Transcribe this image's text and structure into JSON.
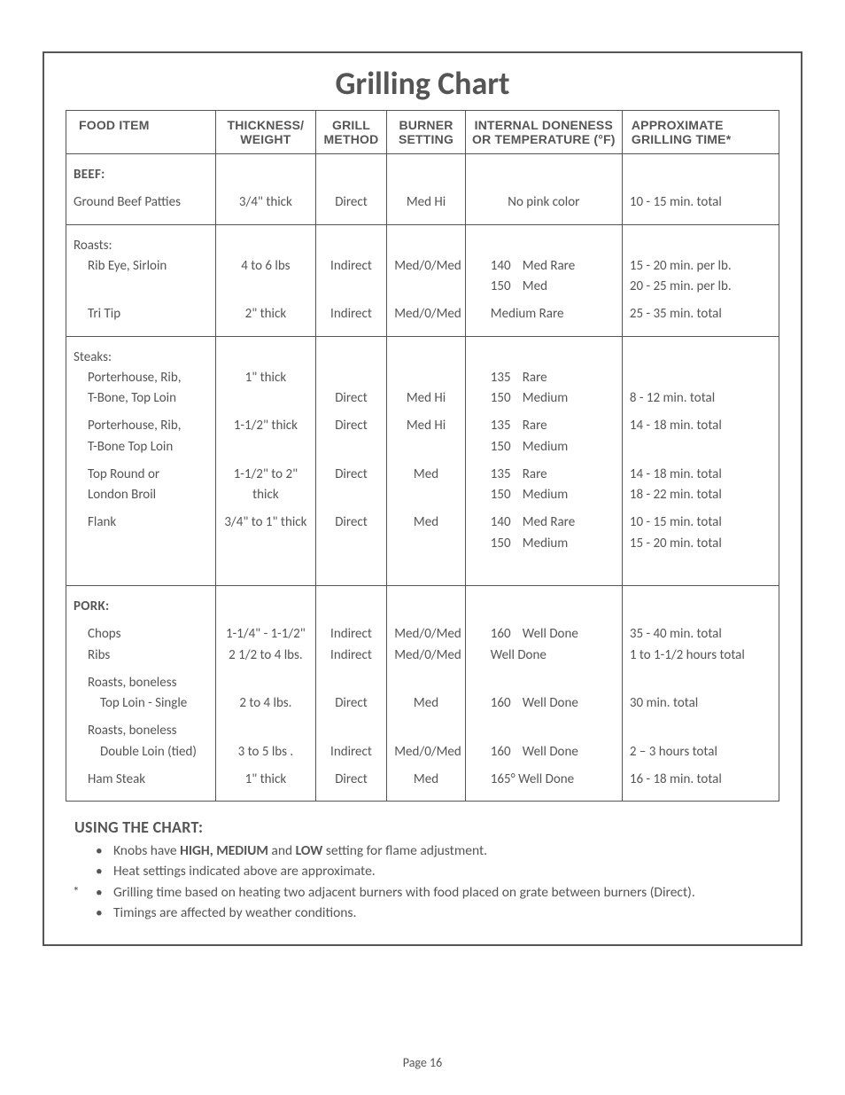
{
  "title": "Grilling Chart",
  "headers": {
    "food": "FOOD ITEM",
    "thickness": "THICKNESS/\nWEIGHT",
    "method": "GRILL\nMETHOD",
    "burner": "BURNER\nSETTING",
    "doneness": "INTERNAL DONENESS\nOR TEMPERATURE (°F)",
    "time": "APPROXIMATE\nGRILLING TIME*"
  },
  "beef": {
    "label": "BEEF:",
    "patties": {
      "name": "Ground Beef Patties",
      "thick": "3/4\" thick",
      "method": "Direct",
      "burner": "Med Hi",
      "done": "No pink color",
      "time": "10 - 15 min. total"
    },
    "roasts_label": "Roasts:",
    "ribeye": {
      "name": "Rib Eye,  Sirloin",
      "thick": "4 to 6 lbs",
      "method": "Indirect",
      "burner": "Med/0/Med",
      "done1_t": "140",
      "done1_l": "Med Rare",
      "done2_t": "150",
      "done2_l": "Med",
      "time1": "15 - 20 min. per lb.",
      "time2": "20 - 25 min. per lb."
    },
    "tritip": {
      "name": "Tri Tip",
      "thick": "2\" thick",
      "method": "Indirect",
      "burner": "Med/0/Med",
      "done": "Medium Rare",
      "time": "25 - 35 min. total"
    },
    "steaks_label": "Steaks:",
    "steak1": {
      "name1": "Porterhouse, Rib,",
      "name2": "T-Bone, Top Loin",
      "thick": "1\" thick",
      "method": "Direct",
      "burner": "Med Hi",
      "done1_t": "135",
      "done1_l": "Rare",
      "done2_t": "150",
      "done2_l": "Medium",
      "time": "8 - 12 min. total"
    },
    "steak2": {
      "name1": "Porterhouse, Rib,",
      "name2": "T-Bone Top Loin",
      "thick": "1-1/2\" thick",
      "method": "Direct",
      "burner": "Med Hi",
      "done1_t": "135",
      "done1_l": "Rare",
      "done2_t": "150",
      "done2_l": "Medium",
      "time": "14 - 18 min. total"
    },
    "london": {
      "name1": "Top Round or",
      "name2": "London Broil",
      "thick1": "1-1/2\" to 2\"",
      "thick2": "thick",
      "method": "Direct",
      "burner": "Med",
      "done1_t": "135",
      "done1_l": "Rare",
      "done2_t": "150",
      "done2_l": "Medium",
      "time1": "14 - 18 min. total",
      "time2": "18 - 22 min. total"
    },
    "flank": {
      "name": "Flank",
      "thick": "3/4\" to 1\" thick",
      "method": "Direct",
      "burner": "Med",
      "done1_t": "140",
      "done1_l": "Med Rare",
      "done2_t": "150",
      "done2_l": "Medium",
      "time1": "10 - 15 min. total",
      "time2": "15 - 20 min. total"
    }
  },
  "pork": {
    "label": "PORK:",
    "chops": {
      "name": "Chops",
      "thick": "1-1/4\" - 1-1/2\"",
      "method": "Indirect",
      "burner": "Med/0/Med",
      "done_t": "160",
      "done_l": "Well Done",
      "time": "35 - 40 min. total"
    },
    "ribs": {
      "name": "Ribs",
      "thick": "2 1/2 to 4 lbs.",
      "method": "Indirect",
      "burner": "Med/0/Med",
      "done": "Well Done",
      "time": "1 to 1-1/2 hours total"
    },
    "roast1": {
      "name1": "Roasts, boneless",
      "name2": "Top Loin - Single",
      "thick": "2 to 4 lbs.",
      "method": "Direct",
      "burner": "Med",
      "done_t": "160",
      "done_l": "Well Done",
      "time": "30 min. total"
    },
    "roast2": {
      "name1": "Roasts, boneless",
      "name2": "Double Loin (tied)",
      "thick": "3 to 5 lbs .",
      "method": "Indirect",
      "burner": "Med/0/Med",
      "done_t": "160",
      "done_l": "Well Done",
      "time": "2 – 3 hours total"
    },
    "ham": {
      "name": "Ham Steak",
      "thick": "1\" thick",
      "method": "Direct",
      "burner": "Med",
      "done": "165° Well Done",
      "time": "16 - 18 min. total"
    }
  },
  "notes": {
    "heading": "USING THE CHART:",
    "n1a": "Knobs have ",
    "n1b": "HIGH, MEDIUM",
    "n1c": " and ",
    "n1d": "LOW",
    "n1e": " setting for flame adjustment.",
    "n2": "Heat settings indicated above are approximate.",
    "n3": "Grilling time based on heating two adjacent burners with food placed on grate between burners (Direct).",
    "n4": "Timings are affected by weather conditions.",
    "asterisk": "*"
  },
  "footer": "Page 16",
  "colors": {
    "text": "#555555",
    "border": "#555555",
    "background": "#ffffff"
  }
}
